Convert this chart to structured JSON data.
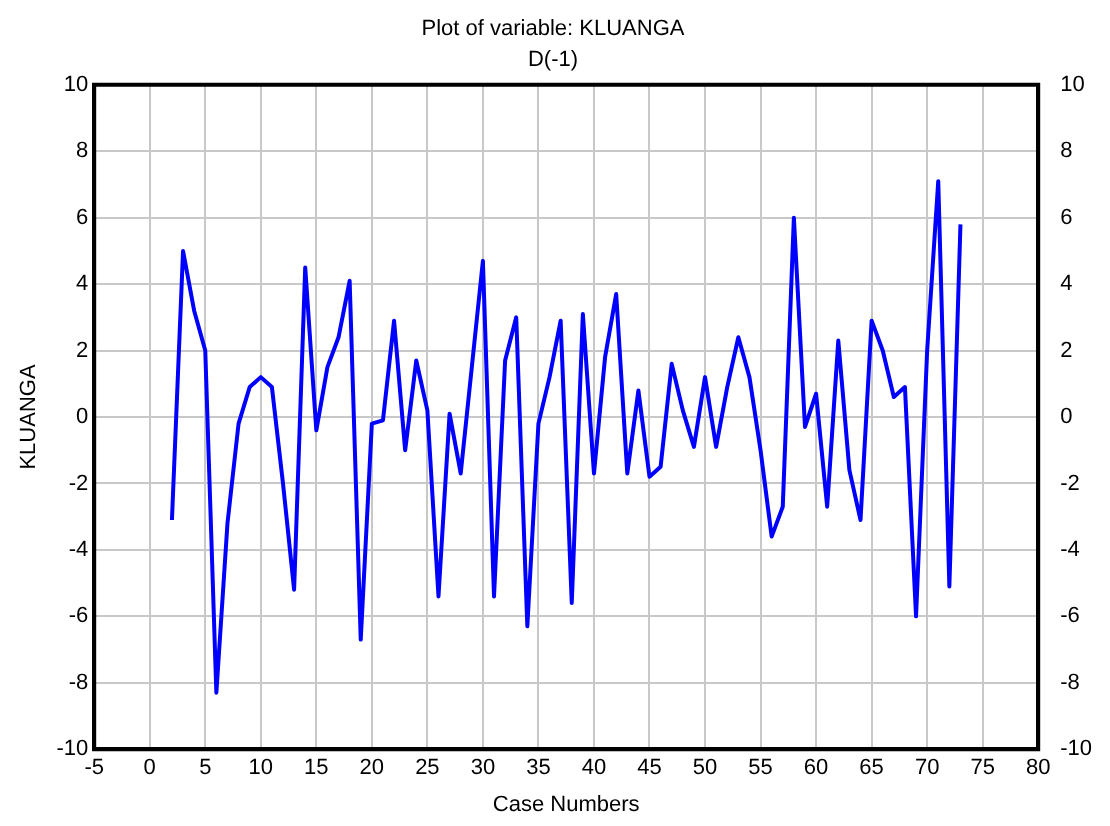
{
  "chart_data": {
    "type": "line",
    "title": "Plot of variable: KLUANGA",
    "subtitle": "D(-1)",
    "xlabel": "Case Numbers",
    "ylabel": "KLUANGA",
    "x": [
      2,
      3,
      4,
      5,
      6,
      7,
      8,
      9,
      10,
      11,
      12,
      13,
      14,
      15,
      16,
      17,
      18,
      19,
      20,
      21,
      22,
      23,
      24,
      25,
      26,
      27,
      28,
      29,
      30,
      31,
      32,
      33,
      34,
      35,
      36,
      37,
      38,
      39,
      40,
      41,
      42,
      43,
      44,
      45,
      46,
      47,
      48,
      49,
      50,
      51,
      52,
      53,
      54,
      55,
      56,
      57,
      58,
      59,
      60,
      61,
      62,
      63,
      64,
      65,
      66,
      67,
      68,
      69,
      70,
      71,
      72,
      73
    ],
    "series": [
      {
        "color": "#0000ff",
        "values": [
          -3.1,
          5.0,
          3.2,
          2.0,
          -8.3,
          -3.2,
          -0.2,
          0.9,
          1.2,
          0.9,
          -2.0,
          -5.2,
          4.5,
          -0.4,
          1.5,
          2.4,
          4.1,
          -6.7,
          -0.2,
          -0.1,
          2.9,
          -1.0,
          1.7,
          0.2,
          -5.4,
          0.1,
          -1.7,
          1.5,
          4.7,
          -5.4,
          1.7,
          3.0,
          -6.3,
          -0.2,
          1.2,
          2.9,
          -5.6,
          3.1,
          -1.7,
          1.8,
          3.7,
          -1.7,
          0.8,
          -1.8,
          -1.5,
          1.6,
          0.2,
          -0.9,
          1.2,
          -0.9,
          0.9,
          2.4,
          1.2,
          -1.0,
          -3.6,
          -2.7,
          6.0,
          -0.3,
          0.7,
          -2.7,
          2.3,
          -1.6,
          -3.1,
          2.9,
          2.0,
          0.6,
          0.9,
          -6.0,
          2.0,
          7.1,
          -5.1,
          5.8
        ]
      }
    ],
    "xlim": [
      -5,
      80
    ],
    "xticks": [
      -5,
      0,
      5,
      10,
      15,
      20,
      25,
      30,
      35,
      40,
      45,
      50,
      55,
      60,
      65,
      70,
      75,
      80
    ],
    "ylim": [
      -10,
      10
    ],
    "yticks": [
      -10,
      -8,
      -6,
      -4,
      -2,
      0,
      2,
      4,
      6,
      8,
      10
    ],
    "y2lim": [
      -10,
      10
    ],
    "y2ticks": [
      -10,
      -8,
      -6,
      -4,
      -2,
      0,
      2,
      4,
      6,
      8,
      10
    ],
    "grid": true,
    "legend": false,
    "marker": "none",
    "line_style": "solid"
  }
}
